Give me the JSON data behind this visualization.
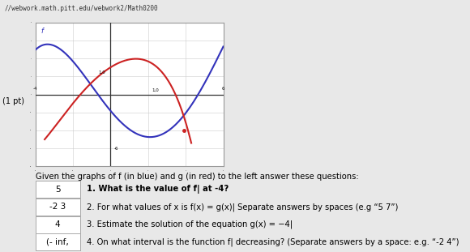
{
  "page_bg": "#e8e8e8",
  "graph_bg": "#ffffff",
  "graph_border": "#999999",
  "graph_xlim": [
    -4,
    6
  ],
  "graph_ylim": [
    -8,
    8
  ],
  "grid_color": "#cccccc",
  "blue_color": "#3333bb",
  "red_color": "#cc2222",
  "axis_color": "#333333",
  "caption": "Given the graphs of f (in blue) and g (in red) to the left answer these questions:",
  "qa": [
    {
      "ans": "5",
      "q": "1. What is the value of f| at -4?"
    },
    {
      "ans": "-2 3",
      "q": "2. For what values of x is f(x) = g(x)| Separate answers by spaces (e.g “5 7”)"
    },
    {
      "ans": "4",
      "q": "3. Estimate the solution of the equation g(x) = −4|"
    },
    {
      "ans": "(- inf,",
      "q": "4. On what interval is the function f| decreasing? (Separate answers by a space: e.g. “-2 4”)"
    }
  ],
  "url_bar_color": "#d0d0d0",
  "url_text": "//webwork.math.pitt.edu/webwork2/Math0200",
  "label_1pt": "(1 pt)"
}
